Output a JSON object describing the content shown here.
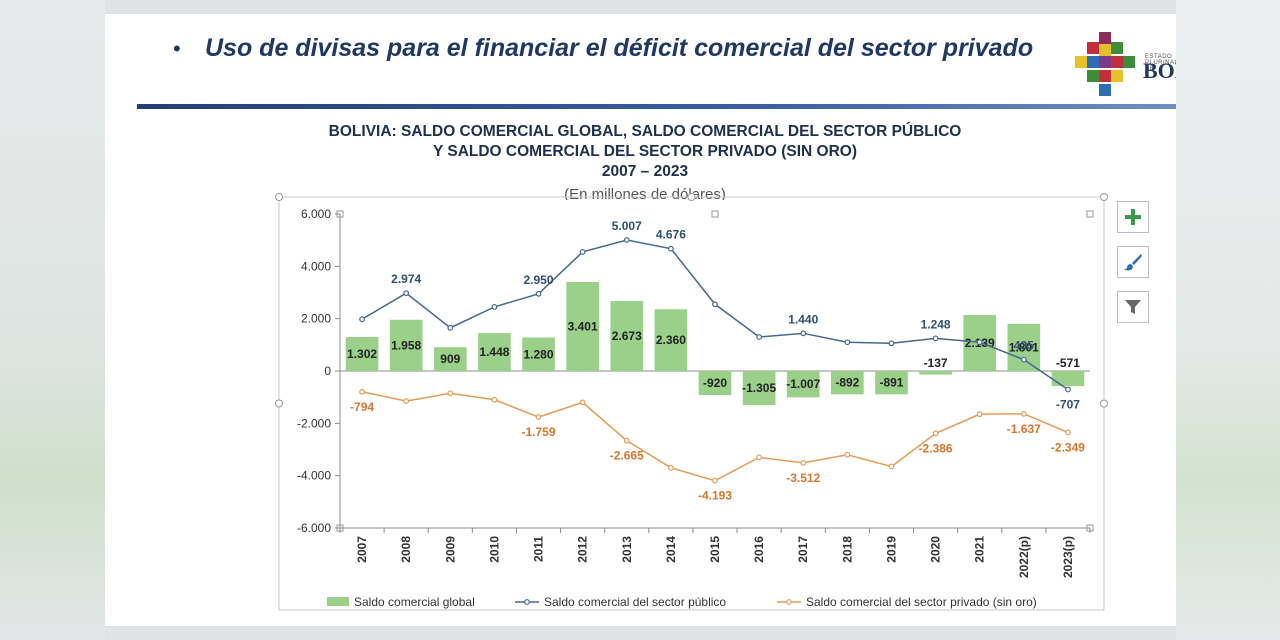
{
  "slide": {
    "bullet": "•",
    "title": "Uso de divisas para el financiar el déficit comercial del sector privado",
    "logo_small": "ESTADO PLURINACIONAL DE",
    "logo_text": "BOLIVIA"
  },
  "chart_data": {
    "type": "bar+line",
    "title_lines": [
      "BOLIVIA: SALDO COMERCIAL GLOBAL, SALDO COMERCIAL DEL SECTOR PÚBLICO",
      "Y SALDO COMERCIAL DEL SECTOR PRIVADO (SIN ORO)",
      "2007 – 2023"
    ],
    "subtitle": "(En millones de dólares)",
    "categories": [
      "2007",
      "2008",
      "2009",
      "2010",
      "2011",
      "2012",
      "2013",
      "2014",
      "2015",
      "2016",
      "2017",
      "2018",
      "2019",
      "2020",
      "2021",
      "2022(p)",
      "2023(p)"
    ],
    "ylim": [
      -6000,
      6000
    ],
    "yticks": [
      6000,
      4000,
      2000,
      0,
      -2000,
      -4000,
      -6000
    ],
    "ytick_labels": [
      "6.000",
      "4.000",
      "2.000",
      "0",
      "-2.000",
      "-4.000",
      "-6.000"
    ],
    "grid": false,
    "legend_position": "bottom",
    "series": [
      {
        "name": "Saldo comercial global",
        "kind": "bar",
        "color": "#9bd08a",
        "values": [
          1302,
          1958,
          909,
          1448,
          1280,
          3401,
          2673,
          2360,
          -920,
          -1305,
          -1007,
          -892,
          -891,
          -137,
          2139,
          1801,
          -571
        ],
        "labels": [
          "1.302",
          "1.958",
          "909",
          "1.448",
          "1.280",
          "3.401",
          "2.673",
          "2.360",
          "-920",
          "-1.305",
          "-1.007",
          "-892",
          "-891",
          "-137",
          "2.139",
          "1.801",
          "-571"
        ]
      },
      {
        "name": "Saldo comercial del sector público",
        "kind": "line",
        "color": "#44688f",
        "values": [
          1980,
          2974,
          1650,
          2450,
          2950,
          4550,
          5007,
          4676,
          2550,
          1300,
          1440,
          1100,
          1060,
          1248,
          1100,
          435,
          -707
        ],
        "labels": [
          "",
          "2.974",
          "",
          "",
          "2.950",
          "",
          "5.007",
          "4.676",
          "",
          "",
          "1.440",
          "",
          "",
          "1.248",
          "",
          "435",
          "-707"
        ]
      },
      {
        "name": "Saldo comercial del sector privado (sin oro)",
        "kind": "line",
        "color": "#e89a56",
        "values": [
          -794,
          -1150,
          -850,
          -1100,
          -1759,
          -1200,
          -2665,
          -3700,
          -4193,
          -3300,
          -3512,
          -3200,
          -3650,
          -2386,
          -1650,
          -1637,
          -2349
        ],
        "labels": [
          "-794",
          "",
          "",
          "",
          "-1.759",
          "",
          "-2.665",
          "",
          "-4.193",
          "",
          "-3.512",
          "",
          "",
          "-2.386",
          "",
          "-1.637",
          "-2.349"
        ]
      }
    ]
  },
  "tools": {
    "add_icon": "plus-icon",
    "style_icon": "brush-icon",
    "filter_icon": "filter-icon"
  }
}
